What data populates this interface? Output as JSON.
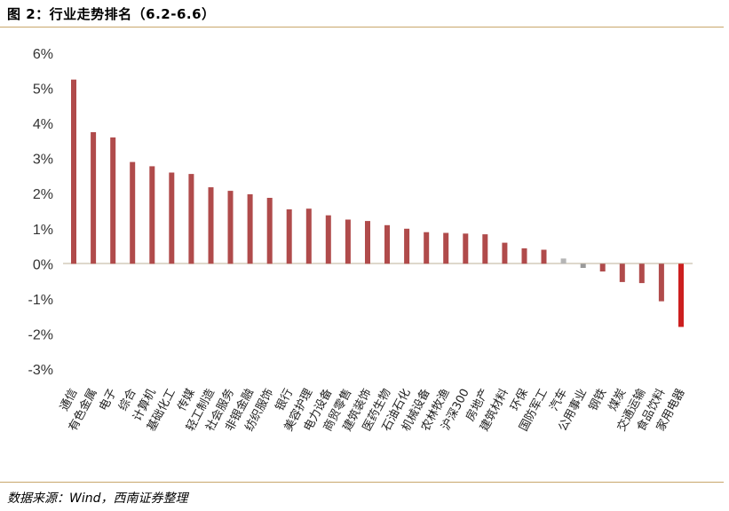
{
  "header": {
    "title": "图 2：行业走势排名（6.2-6.6）"
  },
  "footer": {
    "source": "数据来源：Wind，西南证券整理"
  },
  "chart_data": {
    "type": "bar",
    "title": "图 2：行业走势排名（6.2-6.6）",
    "xlabel": "",
    "ylabel": "",
    "ylim": [
      -3,
      6
    ],
    "yticks": [
      "6%",
      "5%",
      "4%",
      "3%",
      "2%",
      "1%",
      "0%",
      "-1%",
      "-2%",
      "-3%"
    ],
    "grid": false,
    "legend": "none",
    "categories": [
      "通信",
      "有色金属",
      "电子",
      "综合",
      "计算机",
      "基础化工",
      "传媒",
      "轻工制造",
      "社会服务",
      "非银金融",
      "纺织服饰",
      "银行",
      "美容护理",
      "电力设备",
      "商贸零售",
      "建筑装饰",
      "医药生物",
      "石油石化",
      "机械设备",
      "农林牧渔",
      "沪深300",
      "房地产",
      "建筑材料",
      "环保",
      "国防军工",
      "汽车",
      "公用事业",
      "钢铁",
      "煤炭",
      "交通运输",
      "食品饮料",
      "家用电器"
    ],
    "values": [
      5.25,
      3.75,
      3.6,
      2.9,
      2.78,
      2.6,
      2.56,
      2.18,
      2.08,
      1.98,
      1.88,
      1.55,
      1.57,
      1.38,
      1.26,
      1.22,
      1.1,
      1.0,
      0.9,
      0.88,
      0.86,
      0.84,
      0.6,
      0.44,
      0.4,
      0.15,
      -0.12,
      -0.22,
      -0.52,
      -0.55,
      -1.07,
      -1.8
    ],
    "colors": {
      "default": "#b04b4b",
      "hs300": "#b04b4b",
      "auto": "#b5b5b5",
      "utilities": "#aaaaaa",
      "last": "#cc1f1f",
      "axis": "#c8a76b"
    },
    "special": {
      "汽车": "#b5b5b5",
      "公用事业": "#9a9a9a",
      "家用电器": "#cc1f1f"
    }
  }
}
